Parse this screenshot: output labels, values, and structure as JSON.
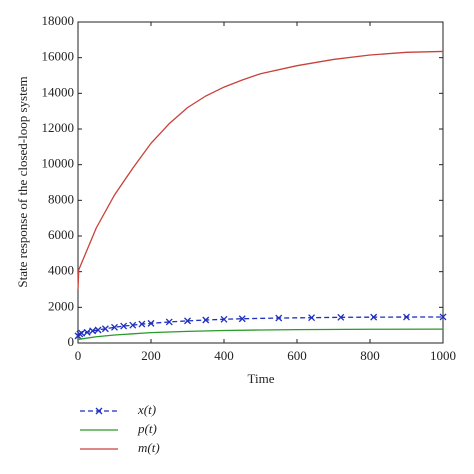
{
  "chart_data": {
    "type": "line",
    "x_label": "Time",
    "y_label": "State response of the closed-loop system",
    "xlim": [
      0,
      1000
    ],
    "ylim": [
      0,
      18000
    ],
    "xticks": [
      0,
      200,
      400,
      600,
      800,
      1000
    ],
    "yticks": [
      0,
      2000,
      4000,
      6000,
      8000,
      10000,
      12000,
      14000,
      16000,
      18000
    ],
    "grid": false,
    "legend": "bottom-left",
    "series": [
      {
        "name": "x(t)",
        "color": "#1f2fbf",
        "dashed": true,
        "marker": "x",
        "x": [
          0,
          5,
          10,
          25,
          40,
          55,
          75,
          100,
          125,
          150,
          175,
          200,
          250,
          300,
          350,
          400,
          450,
          550,
          640,
          720,
          810,
          900,
          1000
        ],
        "values": [
          400,
          500,
          550,
          600,
          680,
          730,
          800,
          880,
          950,
          1000,
          1060,
          1100,
          1180,
          1240,
          1290,
          1330,
          1360,
          1400,
          1420,
          1440,
          1450,
          1455,
          1460
        ]
      },
      {
        "name": "p(t)",
        "color": "#2a9a2a",
        "dashed": false,
        "marker": null,
        "x": [
          0,
          50,
          100,
          200,
          300,
          400,
          500,
          600,
          800,
          1000
        ],
        "values": [
          200,
          350,
          450,
          580,
          650,
          700,
          730,
          750,
          770,
          780
        ]
      },
      {
        "name": "m(t)",
        "color": "#c8423a",
        "dashed": false,
        "marker": null,
        "x": [
          0,
          2,
          50,
          100,
          150,
          200,
          250,
          300,
          350,
          400,
          450,
          500,
          600,
          700,
          800,
          900,
          1000
        ],
        "values": [
          3000,
          4100,
          6450,
          8300,
          9800,
          11200,
          12300,
          13200,
          13850,
          14350,
          14750,
          15100,
          15550,
          15900,
          16150,
          16300,
          16350
        ]
      }
    ]
  }
}
